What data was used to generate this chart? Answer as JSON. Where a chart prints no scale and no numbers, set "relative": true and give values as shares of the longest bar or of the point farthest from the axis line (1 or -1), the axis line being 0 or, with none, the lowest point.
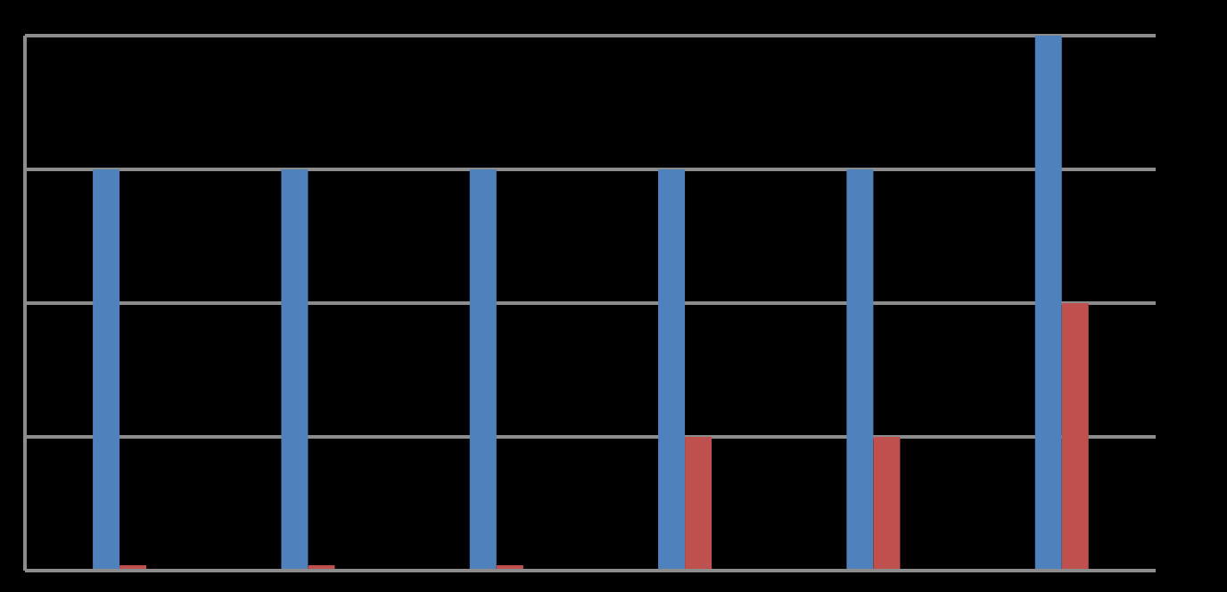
{
  "chart_data": {
    "type": "bar",
    "relative": true,
    "grid": "y",
    "legend": false,
    "categories": [
      null,
      null,
      null,
      null,
      null,
      null
    ],
    "series": [
      {
        "color": "#4f81bd",
        "values": [
          0.75,
          0.75,
          0.75,
          0.75,
          0.75,
          1
        ]
      },
      {
        "color": "#c0504d",
        "values": [
          0,
          0,
          0,
          0.25,
          0.25,
          0.5
        ]
      }
    ]
  }
}
